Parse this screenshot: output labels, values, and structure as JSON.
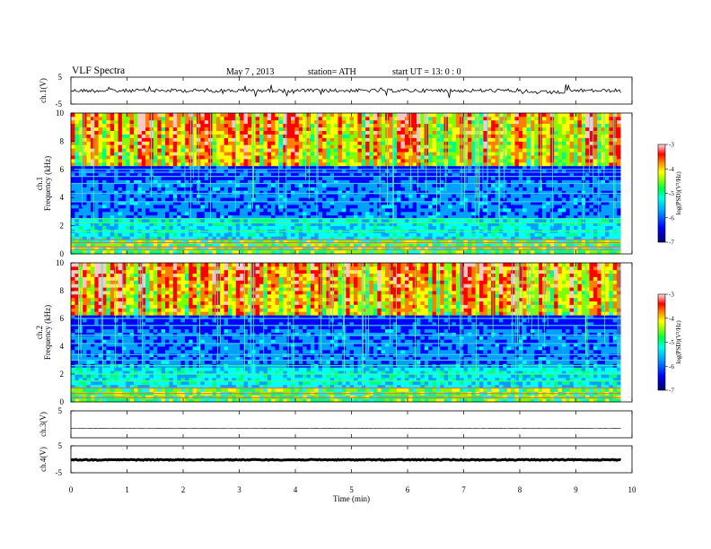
{
  "header": {
    "title": "VLF  Spectra",
    "date": "May 7  , 2013",
    "station": "station= ATH",
    "start": "start  UT  =   13: 0  : 0"
  },
  "chart_data": [
    {
      "type": "line",
      "panel": "ch1-waveform",
      "ylabel": "ch.1(V)",
      "xlim": [
        0,
        10
      ],
      "ylim": [
        -5,
        5
      ],
      "yticks": [
        "5",
        "-5"
      ],
      "series": [
        {
          "x_end": 9.8,
          "y_level": 0
        }
      ]
    },
    {
      "type": "heatmap",
      "panel": "ch1-spectrogram",
      "ylabel_channel": "ch.1",
      "ylabel": "Frequency  (kHz)",
      "xlim": [
        0,
        9.8
      ],
      "ylim": [
        0,
        10
      ],
      "yticks": [
        "0",
        "2",
        "4",
        "6",
        "8",
        "10"
      ],
      "colorbar": {
        "label": "log(PSD)(V²/Hz)",
        "range": [
          -7,
          -3
        ],
        "ticks": [
          "-3",
          "-4",
          "-5",
          "-6",
          "-7"
        ]
      },
      "bands_khz": [
        0.3,
        0.5,
        0.8,
        1.0,
        1.6,
        2.2,
        2.5,
        3.7,
        4.3,
        5.0,
        5.5,
        5.8,
        6.0
      ]
    },
    {
      "type": "heatmap",
      "panel": "ch2-spectrogram",
      "ylabel_channel": "ch.2",
      "ylabel": "Frequency  (kHz)",
      "xlim": [
        0,
        9.8
      ],
      "ylim": [
        0,
        10
      ],
      "yticks": [
        "0",
        "2",
        "4",
        "6",
        "8",
        "10"
      ],
      "colorbar": {
        "label": "log(PSD)(V²/Hz)",
        "range": [
          -7,
          -3
        ],
        "ticks": [
          "-3",
          "-4",
          "-5",
          "-6",
          "-7"
        ]
      },
      "bands_khz": [
        0.3,
        0.6,
        1.0,
        1.5,
        2.0,
        2.6,
        3.0,
        3.4,
        4.2,
        4.8,
        5.5,
        6.0
      ]
    },
    {
      "type": "line",
      "panel": "ch3-waveform",
      "ylabel": "ch.3(V)",
      "xlim": [
        0,
        10
      ],
      "ylim": [
        -5,
        5
      ],
      "yticks": [
        "5"
      ],
      "series": [
        {
          "x_end": 9.8,
          "y_level": -1.5
        }
      ]
    },
    {
      "type": "line",
      "panel": "ch4-waveform",
      "ylabel": "ch.4(V)",
      "xlim": [
        0,
        10
      ],
      "ylim": [
        -5,
        5
      ],
      "yticks": [
        "5",
        "-5"
      ],
      "series": [
        {
          "x_end": 9.8,
          "y_level": -0.2
        }
      ]
    }
  ],
  "xaxis": {
    "label": "Time  (min)",
    "ticks": [
      "0",
      "1",
      "2",
      "3",
      "4",
      "5",
      "6",
      "7",
      "8",
      "9",
      "10"
    ]
  },
  "colors": {
    "colormap": [
      "#000080",
      "#0000ff",
      "#00a0ff",
      "#00ffff",
      "#00ff80",
      "#80ff00",
      "#ffff00",
      "#ff8000",
      "#ff0000",
      "#ffc8c8"
    ]
  }
}
